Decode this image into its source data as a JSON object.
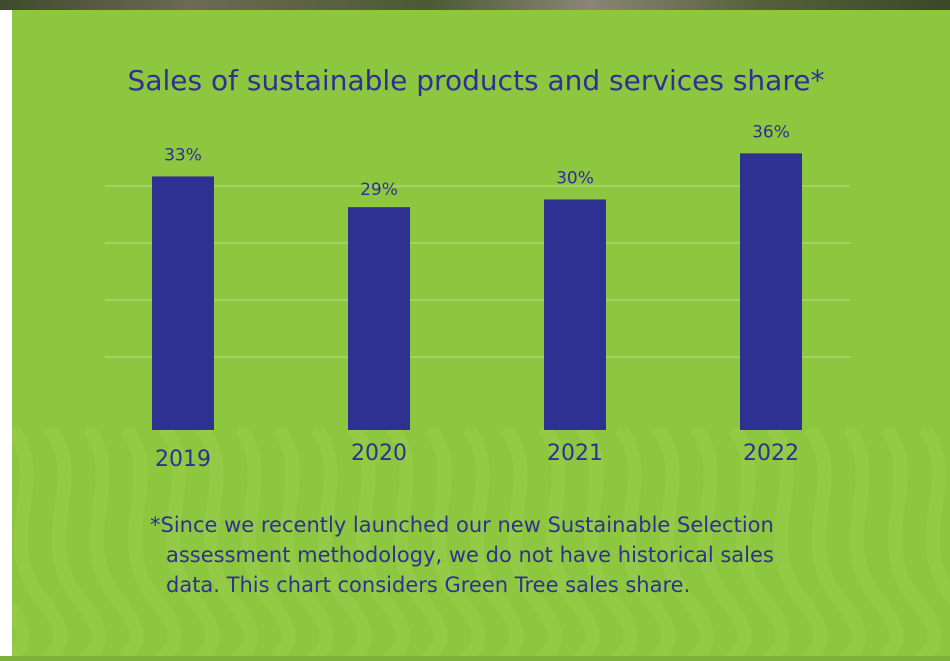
{
  "colors": {
    "background": "#8dc63f",
    "bar": "#2e3192",
    "text": "#2e3192",
    "gridline": "#b9dd86",
    "wave_pattern": "#9bd04d"
  },
  "footnote": {
    "lines": [
      "*Since we recently launched our new Sustainable Selection",
      "assessment methodology, we do not have historical sales",
      "data. This chart considers Green Tree sales share."
    ]
  },
  "chart_data": {
    "type": "bar",
    "title": "Sales of sustainable products and services share*",
    "categories": [
      "2019",
      "2020",
      "2021",
      "2022"
    ],
    "values": [
      33,
      29,
      30,
      36
    ],
    "data_labels": [
      "33%",
      "29%",
      "30%",
      "36%"
    ],
    "unit": "%",
    "xlabel": "",
    "ylabel": "",
    "ylim": [
      0,
      38
    ],
    "grid": true,
    "legend": "none"
  }
}
